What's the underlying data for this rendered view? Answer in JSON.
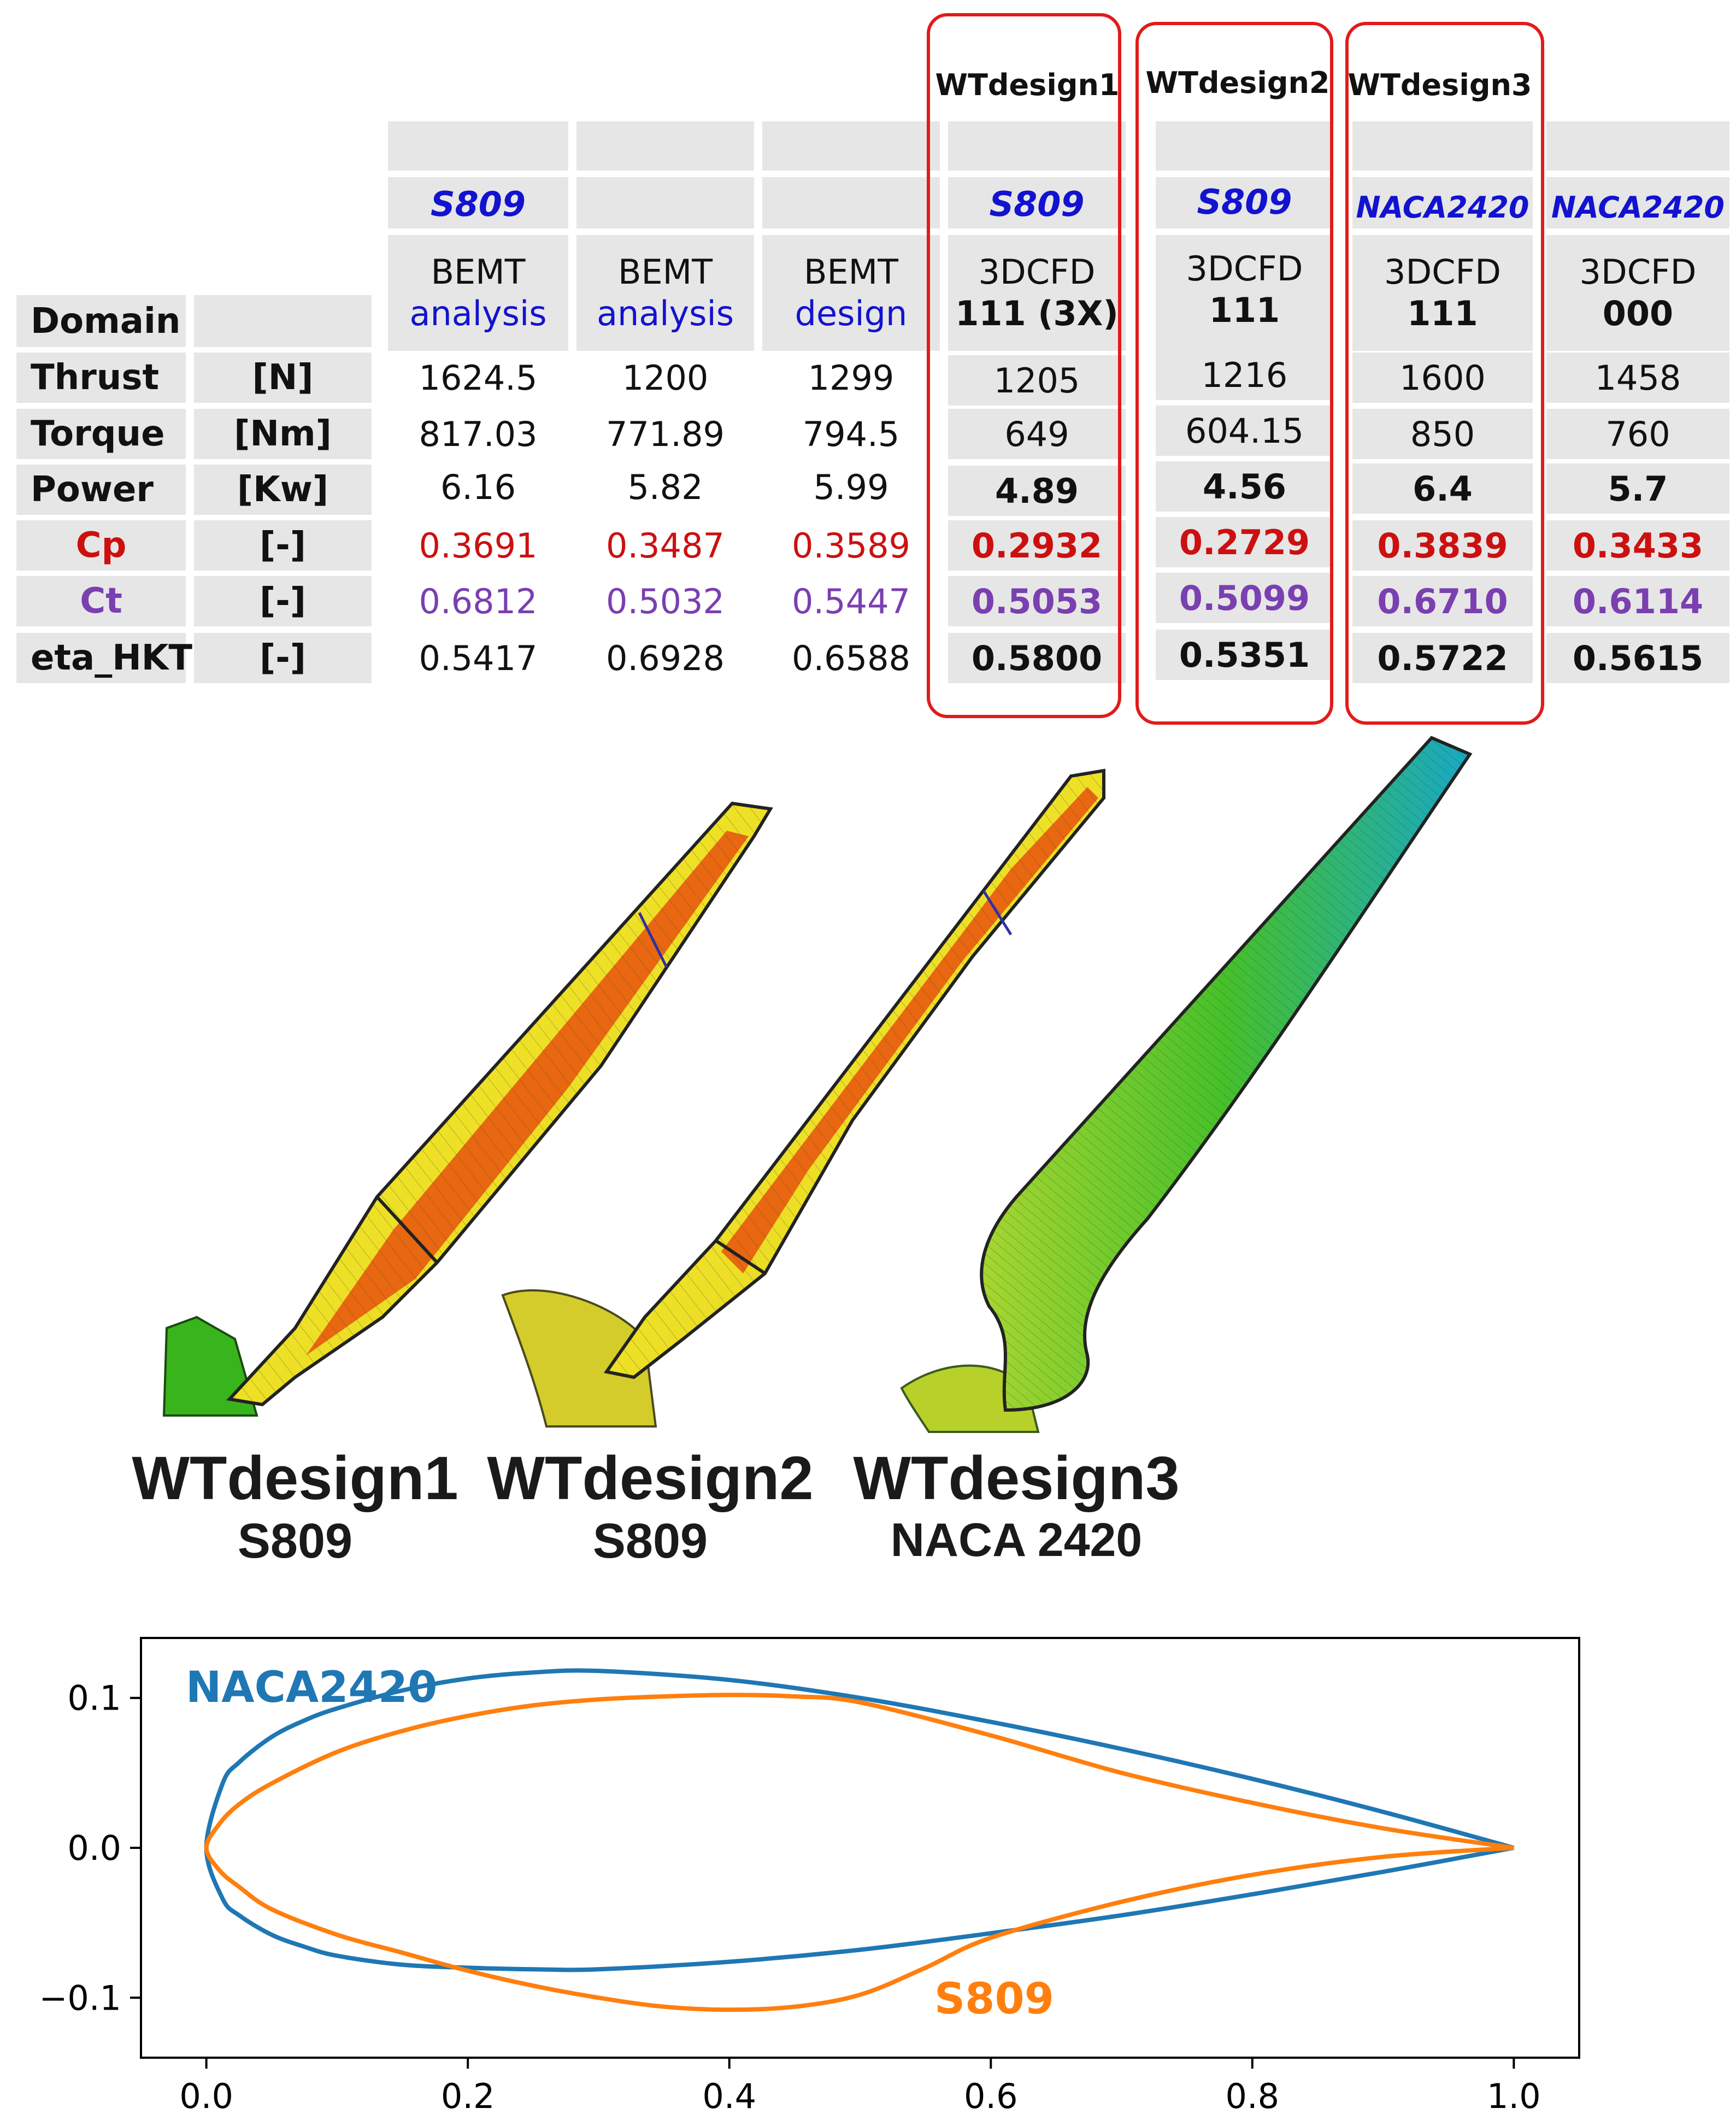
{
  "table": {
    "design_titles": [
      "WTdesign1",
      "WTdesign2",
      "WTdesign3"
    ],
    "columns": [
      {
        "airfoil": "S809",
        "method": "BEMT",
        "variant": "analysis"
      },
      {
        "airfoil": "",
        "method": "BEMT",
        "variant": "analysis"
      },
      {
        "airfoil": "",
        "method": "BEMT",
        "variant": "design"
      },
      {
        "airfoil": "S809",
        "method": "3DCFD",
        "variant": "111 (3X)"
      },
      {
        "airfoil": "S809",
        "method": "3DCFD",
        "variant": "111"
      },
      {
        "airfoil": "NACA2420",
        "method": "3DCFD",
        "variant": "111"
      },
      {
        "airfoil": "NACA2420",
        "method": "3DCFD",
        "variant": "000"
      }
    ],
    "domain_label": "Domain",
    "rows": [
      {
        "label": "Thrust",
        "unit": "[N]",
        "values": [
          "1624.5",
          "1200",
          "1299",
          "1205",
          "1216",
          "1600",
          "1458"
        ]
      },
      {
        "label": "Torque",
        "unit": "[Nm]",
        "values": [
          "817.03",
          "771.89",
          "794.5",
          "649",
          "604.15",
          "850",
          "760"
        ]
      },
      {
        "label": "Power",
        "unit": "[Kw]",
        "values": [
          "6.16",
          "5.82",
          "5.99",
          "4.89",
          "4.56",
          "6.4",
          "5.7"
        ]
      },
      {
        "label": "Cp",
        "unit": "[-]",
        "values": [
          "0.3691",
          "0.3487",
          "0.3589",
          "0.2932",
          "0.2729",
          "0.3839",
          "0.3433"
        ]
      },
      {
        "label": "Ct",
        "unit": "[-]",
        "values": [
          "0.6812",
          "0.5032",
          "0.5447",
          "0.5053",
          "0.5099",
          "0.6710",
          "0.6114"
        ]
      },
      {
        "label": "eta_HKT",
        "unit": "[-]",
        "values": [
          "0.5417",
          "0.6928",
          "0.6588",
          "0.5800",
          "0.5351",
          "0.5722",
          "0.5615"
        ]
      }
    ]
  },
  "blades": [
    {
      "title": "WTdesign1",
      "airfoil": "S809"
    },
    {
      "title": "WTdesign2",
      "airfoil": "S809"
    },
    {
      "title": "WTdesign3",
      "airfoil": "NACA 2420"
    }
  ],
  "colors": {
    "red_box": "#e21b1b",
    "cp": "#cc1010",
    "ct": "#7a3fb0",
    "airfoil_label": "#1212d0",
    "naca": "#1f77b4",
    "s809": "#ff7f0e"
  },
  "chart_data": {
    "type": "line",
    "title": "",
    "xlabel": "",
    "ylabel": "",
    "xlim": [
      -0.05,
      1.05
    ],
    "ylim": [
      -0.14,
      0.14
    ],
    "xticks": [
      "0.0",
      "0.2",
      "0.4",
      "0.6",
      "0.8",
      "1.0"
    ],
    "yticks": [
      "−0.1",
      "0.0",
      "0.1"
    ],
    "grid": false,
    "series": [
      {
        "name": "NACA2420",
        "color": "#1f77b4",
        "x": [
          1.0,
          0.9,
          0.8,
          0.7,
          0.6,
          0.5,
          0.4,
          0.3,
          0.25,
          0.2,
          0.15,
          0.1,
          0.075,
          0.05,
          0.025,
          0.0125,
          0.0,
          0.0125,
          0.025,
          0.05,
          0.075,
          0.1,
          0.15,
          0.2,
          0.25,
          0.3,
          0.4,
          0.5,
          0.6,
          0.7,
          0.8,
          0.9,
          1.0
        ],
        "y": [
          0.0,
          0.024,
          0.046,
          0.066,
          0.084,
          0.1,
          0.112,
          0.118,
          0.117,
          0.113,
          0.105,
          0.093,
          0.085,
          0.074,
          0.057,
          0.043,
          0.0,
          -0.034,
          -0.045,
          -0.058,
          -0.066,
          -0.072,
          -0.078,
          -0.08,
          -0.081,
          -0.081,
          -0.076,
          -0.068,
          -0.057,
          -0.045,
          -0.031,
          -0.016,
          0.0
        ]
      },
      {
        "name": "S809",
        "color": "#ff7f0e",
        "x": [
          1.0,
          0.9,
          0.8,
          0.7,
          0.6,
          0.5,
          0.45,
          0.4,
          0.35,
          0.3,
          0.25,
          0.2,
          0.15,
          0.1,
          0.05,
          0.025,
          0.01,
          0.0,
          0.01,
          0.025,
          0.05,
          0.1,
          0.15,
          0.2,
          0.25,
          0.3,
          0.35,
          0.4,
          0.45,
          0.5,
          0.55,
          0.6,
          0.7,
          0.8,
          0.9,
          1.0
        ],
        "y": [
          0.0,
          0.013,
          0.03,
          0.05,
          0.075,
          0.097,
          0.101,
          0.102,
          0.101,
          0.099,
          0.095,
          0.088,
          0.078,
          0.064,
          0.043,
          0.029,
          0.016,
          0.0,
          -0.015,
          -0.026,
          -0.041,
          -0.058,
          -0.07,
          -0.082,
          -0.092,
          -0.1,
          -0.106,
          -0.108,
          -0.106,
          -0.098,
          -0.08,
          -0.06,
          -0.036,
          -0.018,
          -0.006,
          0.0
        ]
      }
    ],
    "annotations": [
      {
        "text": "NACA2420",
        "color": "#1f77b4"
      },
      {
        "text": "S809",
        "color": "#ff7f0e"
      }
    ]
  }
}
